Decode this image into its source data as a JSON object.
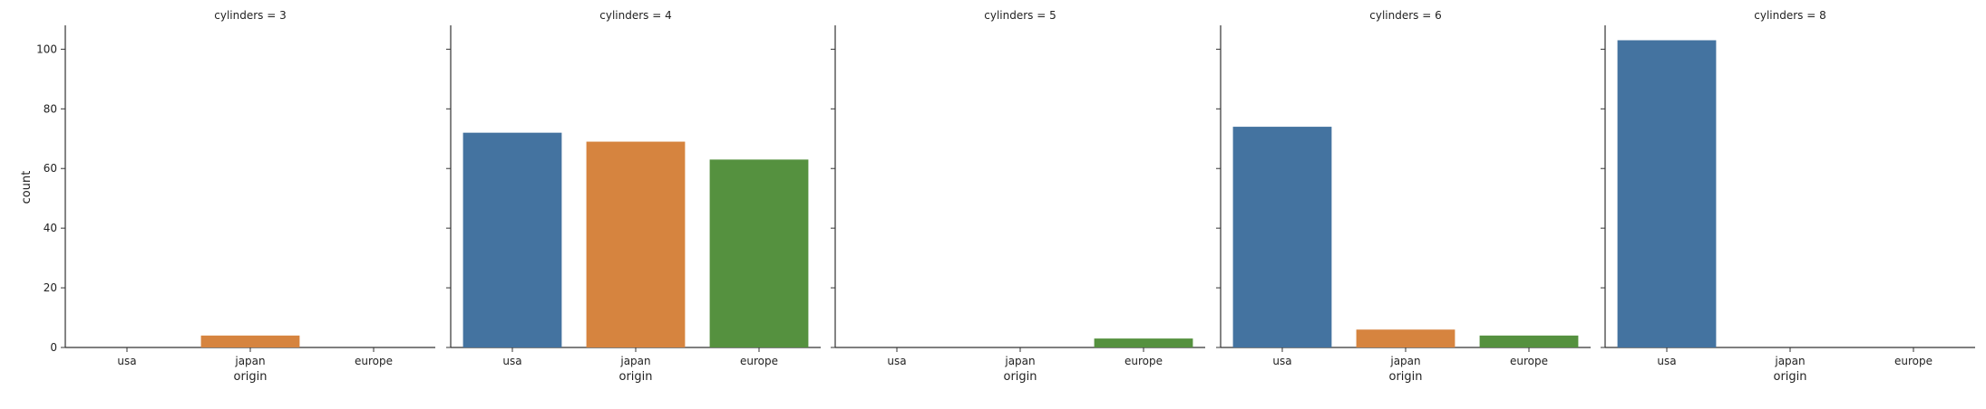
{
  "chart_data": {
    "type": "bar",
    "ylabel": "count",
    "xlabel": "origin",
    "categories": [
      "usa",
      "japan",
      "europe"
    ],
    "colors": [
      "#4473a0",
      "#d6843f",
      "#55913f"
    ],
    "ylim": [
      0,
      108
    ],
    "yticks": [
      "0",
      "20",
      "40",
      "60",
      "80",
      "100"
    ],
    "ytick_values": [
      0,
      20,
      40,
      60,
      80,
      100
    ],
    "grid": false,
    "facets": [
      {
        "title": "cylinders = 3",
        "values": [
          0,
          4,
          0
        ]
      },
      {
        "title": "cylinders = 4",
        "values": [
          72,
          69,
          63
        ]
      },
      {
        "title": "cylinders = 5",
        "values": [
          0,
          0,
          3
        ]
      },
      {
        "title": "cylinders = 6",
        "values": [
          74,
          6,
          4
        ]
      },
      {
        "title": "cylinders = 8",
        "values": [
          103,
          0,
          0
        ]
      }
    ]
  }
}
